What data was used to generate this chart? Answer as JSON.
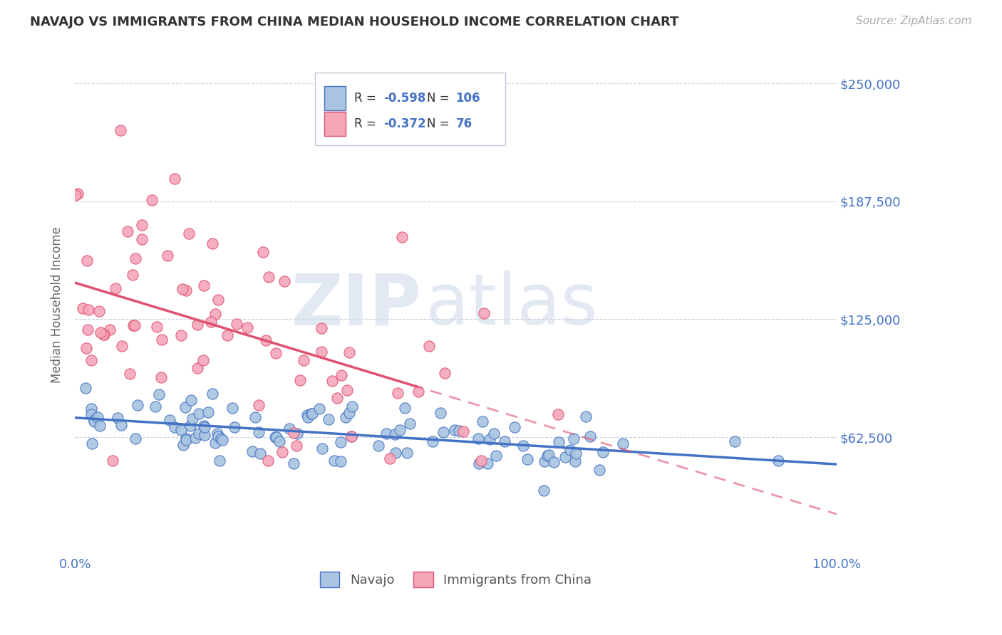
{
  "title": "NAVAJO VS IMMIGRANTS FROM CHINA MEDIAN HOUSEHOLD INCOME CORRELATION CHART",
  "source": "Source: ZipAtlas.com",
  "ylabel": "Median Household Income",
  "yticks": [
    0,
    62500,
    125000,
    187500,
    250000
  ],
  "ylim": [
    0,
    265000
  ],
  "xlim": [
    0.0,
    1.0
  ],
  "legend_label1": "Navajo",
  "legend_label2": "Immigrants from China",
  "R1": -0.598,
  "N1": 106,
  "R2": -0.372,
  "N2": 76,
  "color_navajo_fill": "#a8c4e0",
  "color_navajo_edge": "#4472c4",
  "color_china_fill": "#f4a7b9",
  "color_china_edge": "#e05070",
  "color_trendline_navajo": "#4472c4",
  "color_trendline_china": "#e05070",
  "color_axis_text": "#4472c4",
  "color_grid": "#c8d0dc",
  "color_title": "#333333",
  "color_source": "#aaaaaa",
  "color_ylabel": "#666666",
  "background_color": "#ffffff",
  "watermark_zip": "ZIP",
  "watermark_atlas": "atlas",
  "legend_box_color": "#e8eef4",
  "legend_border_color": "#c0c8d8"
}
